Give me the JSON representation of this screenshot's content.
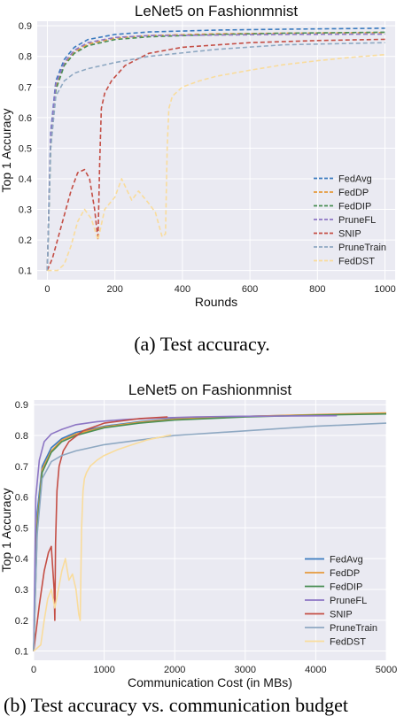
{
  "series_styles": {
    "colors": [
      "#3b7bbf",
      "#e69a3c",
      "#4a8f55",
      "#8d76c4",
      "#c44e45",
      "#8ea8c2",
      "#f9dc9c"
    ]
  },
  "chart_data": [
    {
      "type": "line",
      "title": "LeNet5 on Fashionmnist",
      "xlabel": "Rounds",
      "ylabel": "Top 1 Accuracy",
      "xlim": [
        -30,
        1030
      ],
      "ylim": [
        0.07,
        0.915
      ],
      "xticks": [
        0,
        200,
        400,
        600,
        800,
        1000
      ],
      "yticks": [
        0.1,
        0.2,
        0.3,
        0.4,
        0.5,
        0.6,
        0.7,
        0.8,
        0.9
      ],
      "line_style": "dashed",
      "grid": true,
      "legend_position": "lower-right",
      "series": [
        {
          "name": "FedAvg",
          "x": [
            0,
            10,
            25,
            50,
            80,
            120,
            200,
            300,
            500,
            700,
            1000
          ],
          "y": [
            0.1,
            0.55,
            0.72,
            0.79,
            0.83,
            0.855,
            0.872,
            0.88,
            0.886,
            0.889,
            0.892
          ]
        },
        {
          "name": "FedDP",
          "x": [
            0,
            10,
            25,
            50,
            80,
            120,
            200,
            300,
            500,
            700,
            1000
          ],
          "y": [
            0.1,
            0.52,
            0.7,
            0.775,
            0.815,
            0.84,
            0.86,
            0.868,
            0.874,
            0.876,
            0.878
          ]
        },
        {
          "name": "FedDIP",
          "x": [
            0,
            10,
            25,
            50,
            80,
            120,
            200,
            300,
            500,
            700,
            1000
          ],
          "y": [
            0.1,
            0.5,
            0.69,
            0.77,
            0.81,
            0.835,
            0.855,
            0.864,
            0.872,
            0.876,
            0.879
          ]
        },
        {
          "name": "PruneFL",
          "x": [
            0,
            10,
            25,
            50,
            80,
            120,
            200,
            300,
            500,
            700,
            1000
          ],
          "y": [
            0.1,
            0.54,
            0.71,
            0.78,
            0.82,
            0.845,
            0.862,
            0.868,
            0.87,
            0.872,
            0.873
          ]
        },
        {
          "name": "SNIP",
          "x": [
            0,
            15,
            30,
            50,
            70,
            90,
            110,
            125,
            140,
            150,
            155,
            160,
            170,
            190,
            230,
            300,
            400,
            600,
            800,
            1000
          ],
          "y": [
            0.1,
            0.14,
            0.2,
            0.28,
            0.36,
            0.42,
            0.43,
            0.4,
            0.3,
            0.2,
            0.45,
            0.63,
            0.68,
            0.72,
            0.77,
            0.81,
            0.83,
            0.845,
            0.852,
            0.856
          ]
        },
        {
          "name": "PruneTrain",
          "x": [
            0,
            10,
            25,
            50,
            80,
            120,
            200,
            300,
            500,
            700,
            1000
          ],
          "y": [
            0.1,
            0.5,
            0.67,
            0.72,
            0.745,
            0.76,
            0.78,
            0.8,
            0.823,
            0.838,
            0.845
          ]
        },
        {
          "name": "FedDST",
          "x": [
            0,
            30,
            50,
            70,
            90,
            110,
            130,
            150,
            170,
            200,
            220,
            250,
            270,
            300,
            320,
            340,
            350,
            355,
            360,
            370,
            400,
            450,
            500,
            600,
            700,
            800,
            900,
            1000
          ],
          "y": [
            0.1,
            0.1,
            0.12,
            0.18,
            0.26,
            0.3,
            0.27,
            0.2,
            0.3,
            0.34,
            0.4,
            0.33,
            0.36,
            0.32,
            0.29,
            0.21,
            0.22,
            0.5,
            0.63,
            0.67,
            0.7,
            0.72,
            0.735,
            0.755,
            0.773,
            0.786,
            0.797,
            0.806
          ]
        }
      ]
    },
    {
      "type": "line",
      "title": "LeNet5 on Fashionmnist",
      "xlabel": "Communication Cost (in MBs)",
      "ylabel": "Top 1 Accuracy",
      "xlim": [
        0,
        5000
      ],
      "ylim": [
        0.07,
        0.915
      ],
      "xticks": [
        0,
        1000,
        2000,
        3000,
        4000,
        5000
      ],
      "yticks": [
        0.1,
        0.2,
        0.3,
        0.4,
        0.5,
        0.6,
        0.7,
        0.8,
        0.9
      ],
      "line_style": "solid",
      "grid": true,
      "legend_position": "lower-right",
      "series": [
        {
          "name": "FedAvg",
          "x": [
            0,
            50,
            120,
            250,
            400,
            600,
            1000,
            1500,
            2000,
            3000,
            4000,
            5000
          ],
          "y": [
            0.1,
            0.55,
            0.7,
            0.76,
            0.79,
            0.81,
            0.83,
            0.845,
            0.855,
            0.862,
            0.867,
            0.872
          ]
        },
        {
          "name": "FedDP",
          "x": [
            0,
            50,
            120,
            250,
            400,
            600,
            1000,
            1500,
            2000,
            3000,
            4000,
            5000
          ],
          "y": [
            0.1,
            0.52,
            0.69,
            0.75,
            0.785,
            0.805,
            0.828,
            0.843,
            0.853,
            0.862,
            0.868,
            0.873
          ]
        },
        {
          "name": "FedDIP",
          "x": [
            0,
            50,
            120,
            250,
            400,
            600,
            1000,
            1500,
            2000,
            3000,
            4000,
            5000
          ],
          "y": [
            0.1,
            0.5,
            0.68,
            0.745,
            0.78,
            0.8,
            0.825,
            0.84,
            0.85,
            0.86,
            0.866,
            0.87
          ]
        },
        {
          "name": "PruneFL",
          "x": [
            0,
            30,
            80,
            150,
            250,
            400,
            600,
            900,
            1300,
            1800,
            2300,
            2800,
            3500,
            4300
          ],
          "y": [
            0.1,
            0.6,
            0.72,
            0.78,
            0.805,
            0.82,
            0.835,
            0.845,
            0.852,
            0.857,
            0.86,
            0.862,
            0.863,
            0.864
          ]
        },
        {
          "name": "SNIP",
          "x": [
            0,
            80,
            150,
            210,
            250,
            290,
            300,
            310,
            330,
            360,
            420,
            500,
            700,
            1000,
            1500,
            1900
          ],
          "y": [
            0.1,
            0.25,
            0.36,
            0.42,
            0.44,
            0.3,
            0.2,
            0.45,
            0.62,
            0.7,
            0.75,
            0.78,
            0.815,
            0.84,
            0.855,
            0.86
          ]
        },
        {
          "name": "PruneTrain",
          "x": [
            0,
            50,
            120,
            250,
            400,
            600,
            1000,
            1500,
            2000,
            3000,
            4000,
            5000
          ],
          "y": [
            0.1,
            0.48,
            0.66,
            0.715,
            0.735,
            0.75,
            0.77,
            0.785,
            0.8,
            0.815,
            0.83,
            0.84
          ]
        },
        {
          "name": "FedDST",
          "x": [
            0,
            100,
            150,
            200,
            250,
            300,
            350,
            400,
            450,
            500,
            550,
            600,
            640,
            660,
            680,
            700,
            720,
            750,
            800,
            900,
            1000,
            1200,
            1400,
            1600,
            1800,
            1950
          ],
          "y": [
            0.1,
            0.12,
            0.2,
            0.27,
            0.3,
            0.24,
            0.3,
            0.36,
            0.4,
            0.33,
            0.35,
            0.3,
            0.22,
            0.2,
            0.5,
            0.62,
            0.66,
            0.68,
            0.7,
            0.72,
            0.735,
            0.755,
            0.77,
            0.785,
            0.795,
            0.802
          ]
        }
      ]
    }
  ],
  "captions": {
    "a": "(a) Test accuracy.",
    "b": "(b) Test accuracy vs. communication budget"
  }
}
